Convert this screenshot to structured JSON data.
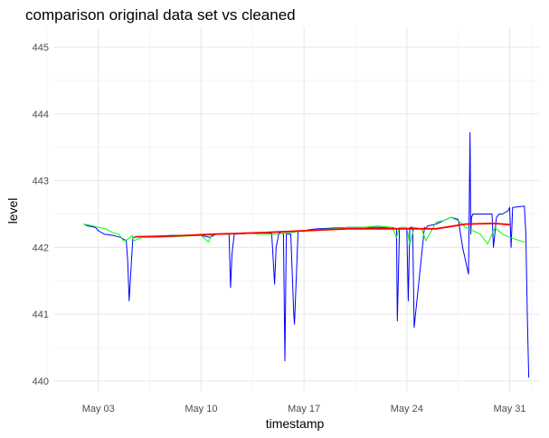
{
  "chart_data": {
    "type": "line",
    "title": "comparison original data set vs cleaned",
    "xlabel": "timestamp",
    "ylabel": "level",
    "x_tick_labels": [
      "May 03",
      "May 10",
      "May 17",
      "May 24",
      "May 31"
    ],
    "x_tick_dates": [
      "2021-05-03",
      "2021-05-10",
      "2021-05-17",
      "2021-05-24",
      "2021-05-31"
    ],
    "xlim": [
      "2021-04-30",
      "2021-06-02"
    ],
    "ylim": [
      439.85,
      445.3
    ],
    "y_ticks": [
      440,
      441,
      442,
      443,
      444,
      445
    ],
    "y_tick_labels": [
      "440",
      "441",
      "442",
      "443",
      "444",
      "445"
    ],
    "grid": true,
    "legend": "none",
    "series": [
      {
        "color": "#0000ff",
        "x": [
          "2021-05-02",
          "2021-05-02.3",
          "2021-05-02.8",
          "2021-05-03",
          "2021-05-03.4",
          "2021-05-04",
          "2021-05-04.5",
          "2021-05-04.9",
          "2021-05-05",
          "2021-05-05.1",
          "2021-05-05.2",
          "2021-05-05.35",
          "2021-05-06",
          "2021-05-08",
          "2021-05-10",
          "2021-05-10.6",
          "2021-05-11",
          "2021-05-11.5",
          "2021-05-11.9",
          "2021-05-12",
          "2021-05-12.1",
          "2021-05-12.25",
          "2021-05-14",
          "2021-05-14.8",
          "2021-05-15",
          "2021-05-15.1",
          "2021-05-15.3",
          "2021-05-15.6",
          "2021-05-15.7",
          "2021-05-15.8",
          "2021-05-16.1",
          "2021-05-16.3",
          "2021-05-16.35",
          "2021-05-16.6",
          "2021-05-17",
          "2021-05-17.1",
          "2021-05-17.2",
          "2021-05-17.5",
          "2021-05-18",
          "2021-05-20",
          "2021-05-22",
          "2021-05-23",
          "2021-05-23.3",
          "2021-05-23.35",
          "2021-05-23.5",
          "2021-05-24",
          "2021-05-24.1",
          "2021-05-24.2",
          "2021-05-24.4",
          "2021-05-24.5",
          "2021-05-25.2",
          "2021-05-25.3",
          "2021-05-25.4",
          "2021-05-26",
          "2021-05-27",
          "2021-05-27.5",
          "2021-05-27.8",
          "2021-05-28.2",
          "2021-05-28.3",
          "2021-05-28.35",
          "2021-05-28.4",
          "2021-05-28.5",
          "2021-05-29.8",
          "2021-05-29.9",
          "2021-05-30.1",
          "2021-05-30.3",
          "2021-05-30.5",
          "2021-05-30.9",
          "2021-05-31",
          "2021-05-31.1",
          "2021-05-31.2",
          "2021-06-01",
          "2021-06-01.1",
          "2021-06-01.2",
          "2021-06-01.3"
        ],
        "y": [
          442.35,
          442.32,
          442.3,
          442.25,
          442.2,
          442.18,
          442.15,
          442.1,
          441.8,
          441.2,
          441.6,
          442.15,
          442.16,
          442.18,
          442.18,
          442.15,
          442.2,
          442.2,
          442.2,
          441.4,
          441.9,
          442.2,
          442.22,
          442.21,
          441.45,
          442.0,
          442.22,
          442.2,
          440.3,
          442.2,
          442.2,
          441.0,
          440.85,
          442.25,
          442.24,
          442.25,
          442.26,
          442.27,
          442.28,
          442.3,
          442.3,
          442.3,
          442.28,
          440.9,
          442.28,
          442.28,
          441.2,
          442.3,
          442.3,
          440.8,
          442.3,
          442.28,
          442.32,
          442.35,
          442.45,
          442.42,
          442.0,
          441.6,
          443.72,
          442.2,
          442.45,
          442.5,
          442.5,
          442.0,
          442.45,
          442.5,
          442.5,
          442.55,
          442.6,
          442.0,
          442.6,
          442.62,
          442.2,
          441.0,
          440.05
        ]
      },
      {
        "color": "#00ff00",
        "x": [
          "2021-05-02",
          "2021-05-02.5",
          "2021-05-03",
          "2021-05-03.5",
          "2021-05-04",
          "2021-05-04.4",
          "2021-05-04.7",
          "2021-05-05",
          "2021-05-05.3",
          "2021-05-05.4",
          "2021-05-06",
          "2021-05-07",
          "2021-05-08",
          "2021-05-09",
          "2021-05-10",
          "2021-05-10.5",
          "2021-05-10.7",
          "2021-05-11",
          "2021-05-12",
          "2021-05-13",
          "2021-05-14",
          "2021-05-15",
          "2021-05-16",
          "2021-05-17",
          "2021-05-18",
          "2021-05-19",
          "2021-05-20",
          "2021-05-21",
          "2021-05-22",
          "2021-05-23",
          "2021-05-23.3",
          "2021-05-23.5",
          "2021-05-24",
          "2021-05-24.2",
          "2021-05-24.5",
          "2021-05-25",
          "2021-05-25.3",
          "2021-05-26",
          "2021-05-26.5",
          "2021-05-27",
          "2021-05-27.5",
          "2021-05-28",
          "2021-05-29",
          "2021-05-29.5",
          "2021-05-30",
          "2021-05-30.5",
          "2021-05-31",
          "2021-06-01"
        ],
        "y": [
          442.35,
          442.33,
          442.3,
          442.28,
          442.22,
          442.2,
          442.1,
          442.12,
          442.18,
          442.1,
          442.15,
          442.15,
          442.16,
          442.17,
          442.18,
          442.08,
          442.18,
          442.2,
          442.2,
          442.22,
          442.2,
          442.2,
          442.22,
          442.25,
          442.27,
          442.28,
          442.3,
          442.3,
          442.32,
          442.3,
          442.15,
          442.3,
          442.3,
          442.05,
          442.3,
          442.28,
          442.1,
          442.38,
          442.4,
          442.45,
          442.4,
          442.3,
          442.2,
          442.05,
          442.3,
          442.2,
          442.15,
          442.08
        ]
      },
      {
        "color": "#ff0000",
        "x": [
          "2021-05-05.5",
          "2021-05-08",
          "2021-05-11",
          "2021-05-14",
          "2021-05-17",
          "2021-05-20",
          "2021-05-23",
          "2021-05-26",
          "2021-05-28",
          "2021-05-30",
          "2021-05-31"
        ],
        "y": [
          442.16,
          442.17,
          442.2,
          442.22,
          442.25,
          442.28,
          442.28,
          442.28,
          442.35,
          442.36,
          442.34
        ]
      }
    ]
  }
}
